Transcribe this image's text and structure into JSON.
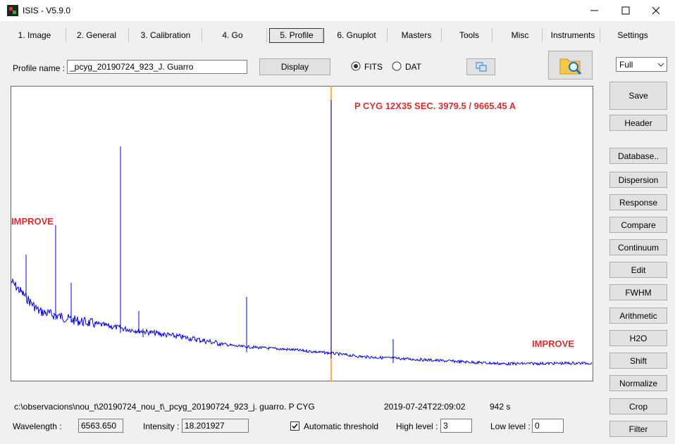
{
  "window": {
    "title": "ISIS - V5.9.0"
  },
  "tabs": [
    "1. Image",
    "2. General",
    "3. Calibration",
    "4. Go",
    "5. Profile",
    "6. Gnuplot",
    "Masters",
    "Tools",
    "Misc",
    "Instruments",
    "Settings"
  ],
  "profile": {
    "label": "Profile name :",
    "value": "_pcyg_20190724_923_J. Guarro",
    "display_button": "Display",
    "options": [
      "FITS",
      "DAT"
    ]
  },
  "plot": {
    "title": "P CYG  12X35 SEC.  3979.5 / 9665.45 A",
    "annotations": [
      "IMPROVE",
      "IMPROVE"
    ]
  },
  "side": {
    "dropdown": "Full",
    "buttons": [
      "Save",
      "Header",
      "Database..",
      "Dispersion",
      "Response",
      "Compare",
      "Continuum",
      "Edit",
      "FWHM",
      "Arithmetic",
      "H2O",
      "Shift",
      "Normalize",
      "Crop",
      "Filter"
    ]
  },
  "status": {
    "path": "c:\\observacions\\nou_t\\20190724_nou_t\\_pcyg_20190724_923_j. guarro. P CYG",
    "date": "2019-07-24T22:09:02",
    "exposure": "942 s"
  },
  "fields": {
    "wavelength_label": "Wavelength :",
    "wavelength": "6563.650",
    "intensity_label": "Intensity :",
    "intensity": "18.201927",
    "threshold": "Automatic threshold",
    "high_label": "High level :",
    "high": "3",
    "low_label": "Low level :",
    "low": "0"
  }
}
